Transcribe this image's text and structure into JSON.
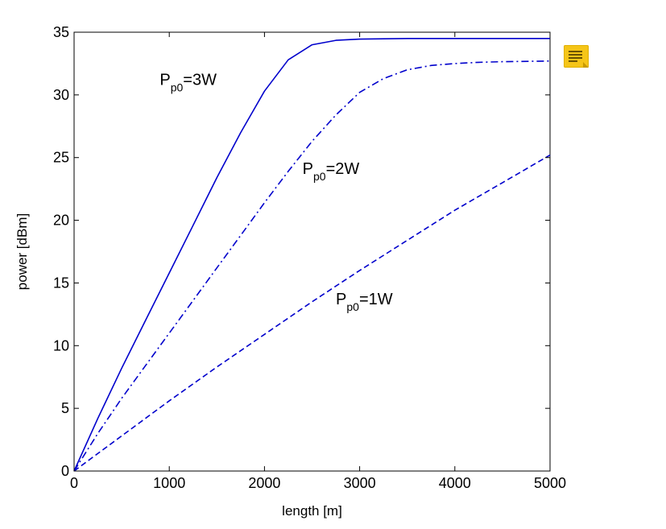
{
  "chart_data": {
    "type": "line",
    "title": "",
    "xlabel": "length [m]",
    "ylabel": "power [dBm]",
    "xlim": [
      0,
      5000
    ],
    "ylim": [
      0,
      35
    ],
    "x_ticks": [
      0,
      1000,
      2000,
      3000,
      4000,
      5000
    ],
    "y_ticks": [
      0,
      5,
      10,
      15,
      20,
      25,
      30,
      35
    ],
    "grid": false,
    "color": "#0000cc",
    "series": [
      {
        "name": "P_p0=3W",
        "prefix": "P",
        "sub": "p0",
        "suffix": "=3W",
        "style": "solid",
        "x": [
          0,
          250,
          500,
          750,
          1000,
          1250,
          1500,
          1750,
          2000,
          2250,
          2500,
          2750,
          3000,
          3500,
          4000,
          4500,
          5000
        ],
        "y": [
          0,
          4.2,
          8.2,
          12.0,
          15.8,
          19.6,
          23.4,
          27.0,
          30.3,
          32.8,
          34.0,
          34.35,
          34.45,
          34.5,
          34.5,
          34.5,
          34.5
        ]
      },
      {
        "name": "P_p0=2W",
        "prefix": "P",
        "sub": "p0",
        "suffix": "=2W",
        "style": "dashdot",
        "x": [
          0,
          250,
          500,
          750,
          1000,
          1250,
          1500,
          1750,
          2000,
          2250,
          2500,
          2750,
          3000,
          3250,
          3500,
          3750,
          4000,
          4250,
          4500,
          5000
        ],
        "y": [
          0,
          3.0,
          5.8,
          8.4,
          11.0,
          13.6,
          16.2,
          18.8,
          21.4,
          23.9,
          26.3,
          28.4,
          30.2,
          31.3,
          32.0,
          32.35,
          32.5,
          32.6,
          32.65,
          32.7
        ]
      },
      {
        "name": "P_p0=1W",
        "prefix": "P",
        "sub": "p0",
        "suffix": "=1W",
        "style": "dashed",
        "x": [
          0,
          500,
          1000,
          1500,
          2000,
          2500,
          3000,
          3500,
          4000,
          4500,
          5000
        ],
        "y": [
          0,
          2.8,
          5.6,
          8.3,
          10.9,
          13.5,
          16.0,
          18.4,
          20.8,
          23.0,
          25.2
        ]
      }
    ],
    "annotations": [
      {
        "series": 0,
        "x": 900,
        "y": 30.8
      },
      {
        "series": 1,
        "x": 2400,
        "y": 23.7
      },
      {
        "series": 2,
        "x": 2750,
        "y": 13.3
      }
    ]
  },
  "note_icon": {
    "name": "note-icon",
    "color": "#f5c518"
  }
}
